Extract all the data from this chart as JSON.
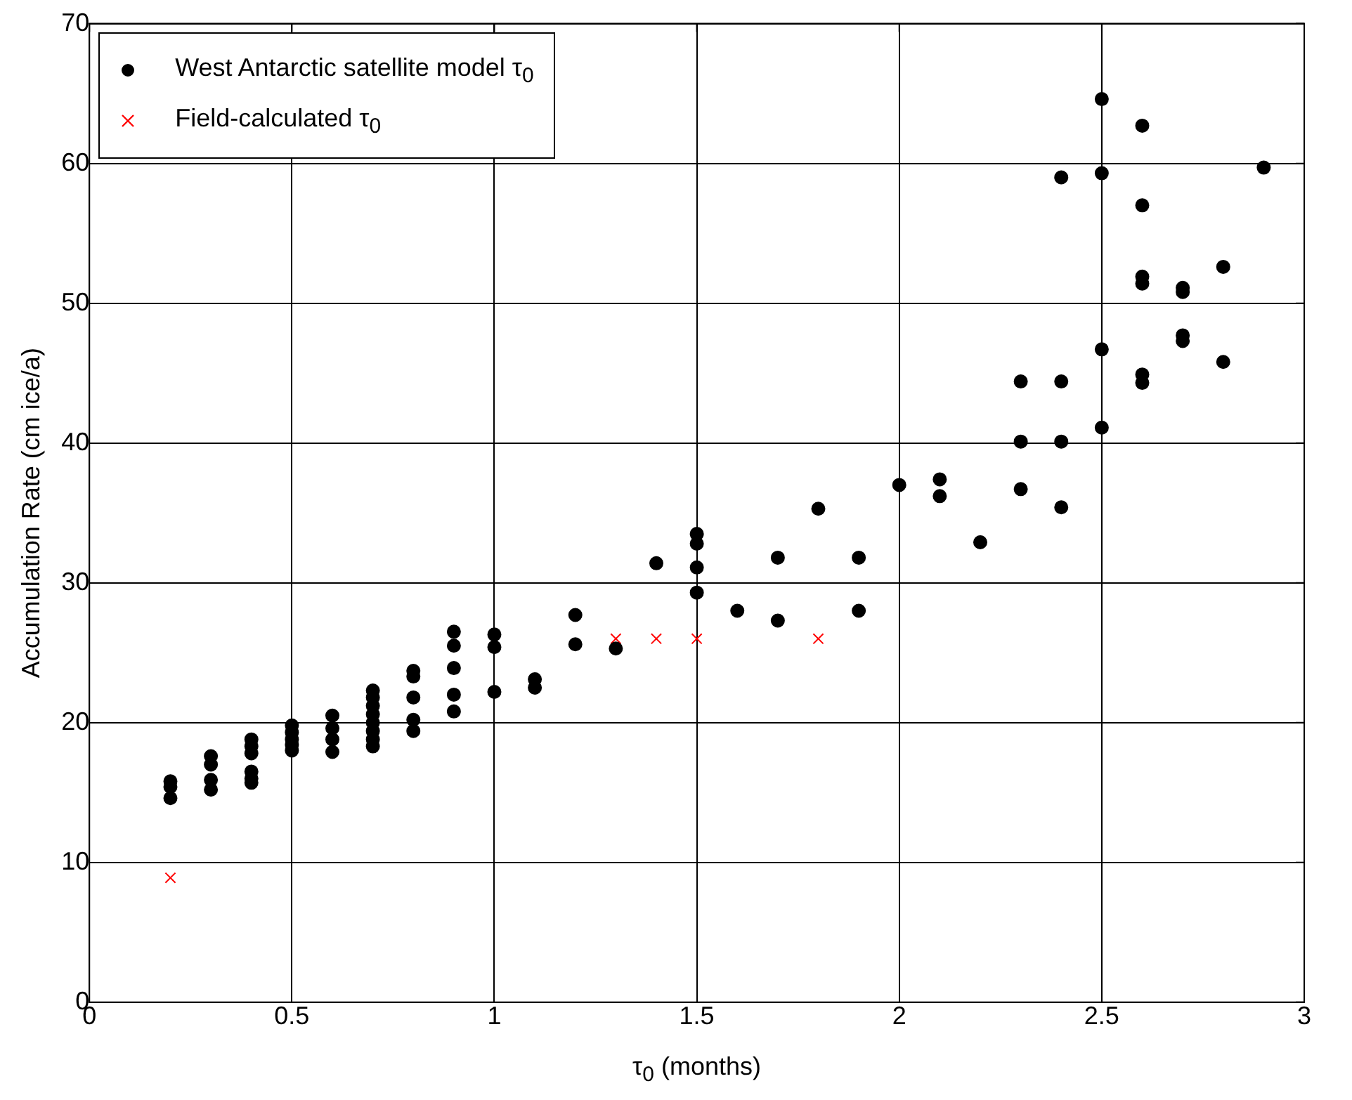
{
  "chart_data": {
    "type": "scatter",
    "xlabel": "τ$_{0}$ (months)",
    "ylabel": "Accumulation Rate (cm ice/a)",
    "xlim": [
      0,
      3
    ],
    "xticks": [
      0,
      0.5,
      1,
      1.5,
      2,
      2.5,
      3
    ],
    "ylim": [
      0,
      70
    ],
    "yticks": [
      0,
      10,
      20,
      30,
      40,
      50,
      60,
      70
    ],
    "grid": true,
    "legend": "top left",
    "series": [
      {
        "name": "West Antarctic satellite model τ$_{0}$",
        "color": "#000000",
        "marker": "circle",
        "x": [
          0.2,
          0.2,
          0.2,
          0.3,
          0.3,
          0.3,
          0.3,
          0.4,
          0.4,
          0.4,
          0.4,
          0.4,
          0.4,
          0.5,
          0.5,
          0.5,
          0.5,
          0.5,
          0.6,
          0.6,
          0.6,
          0.6,
          0.7,
          0.7,
          0.7,
          0.7,
          0.7,
          0.7,
          0.7,
          0.7,
          0.8,
          0.8,
          0.8,
          0.8,
          0.8,
          0.9,
          0.9,
          0.9,
          0.9,
          0.9,
          1.0,
          1.0,
          1.0,
          1.1,
          1.1,
          1.2,
          1.2,
          1.3,
          1.4,
          1.5,
          1.5,
          1.5,
          1.5,
          1.6,
          1.7,
          1.7,
          1.8,
          1.9,
          1.9,
          2.0,
          2.1,
          2.1,
          2.2,
          2.3,
          2.3,
          2.3,
          2.4,
          2.4,
          2.4,
          2.4,
          2.5,
          2.5,
          2.5,
          2.5,
          2.6,
          2.6,
          2.6,
          2.6,
          2.6,
          2.6,
          2.7,
          2.7,
          2.7,
          2.7,
          2.8,
          2.8,
          2.9
        ],
        "values": [
          15.8,
          15.4,
          14.6,
          17.6,
          17.0,
          15.9,
          15.2,
          18.8,
          18.3,
          17.8,
          16.5,
          16.0,
          15.7,
          19.8,
          19.3,
          18.8,
          18.4,
          18.0,
          20.5,
          19.6,
          18.8,
          17.9,
          22.3,
          21.8,
          21.2,
          20.6,
          20.0,
          19.4,
          18.8,
          18.3,
          23.7,
          23.3,
          21.8,
          20.2,
          19.4,
          26.5,
          25.5,
          23.9,
          22.0,
          20.8,
          26.3,
          25.4,
          22.2,
          23.1,
          22.5,
          27.7,
          25.6,
          25.3,
          31.4,
          33.5,
          32.8,
          31.1,
          29.3,
          28.0,
          31.8,
          27.3,
          35.3,
          31.8,
          28.0,
          37.0,
          37.4,
          36.2,
          32.9,
          44.4,
          40.1,
          36.7,
          59.0,
          44.4,
          40.1,
          35.4,
          64.6,
          59.3,
          46.7,
          41.1,
          62.7,
          57.0,
          51.9,
          51.4,
          44.9,
          44.3,
          51.1,
          50.8,
          47.7,
          47.3,
          52.6,
          45.8,
          59.7
        ]
      },
      {
        "name": "Field-calculated τ$_{0}$",
        "color": "#ff0000",
        "marker": "cross",
        "x": [
          0.2,
          1.3,
          1.4,
          1.5,
          1.8
        ],
        "values": [
          8.9,
          26.0,
          26.0,
          26.0,
          26.0
        ]
      }
    ]
  }
}
